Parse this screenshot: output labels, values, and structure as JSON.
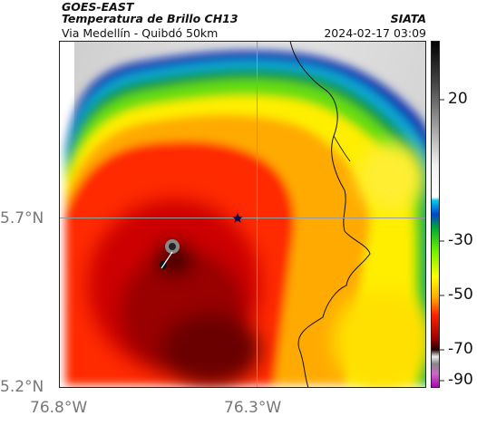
{
  "header": {
    "satellite": "GOES-EAST",
    "product": "Temperatura de Brillo CH13",
    "subtitle": "Via Medellín - Quibdó 50km",
    "agency": "SIATA",
    "timestamp": "2024-02-17 03:09"
  },
  "axes": {
    "lat_ticks": [
      "5.7°N",
      "5.2°N"
    ],
    "lon_ticks": [
      "76.8°W",
      "76.3°W"
    ]
  },
  "colorbar": {
    "ticks": [
      "20",
      "-30",
      "-50",
      "-70",
      "-90"
    ]
  },
  "colors": {
    "warm_surface": "#d9d9d9",
    "cold_front": "#0033aa",
    "mid": "#ffdd00",
    "cold_core": "#b50000",
    "coldest": "#2a0000"
  }
}
